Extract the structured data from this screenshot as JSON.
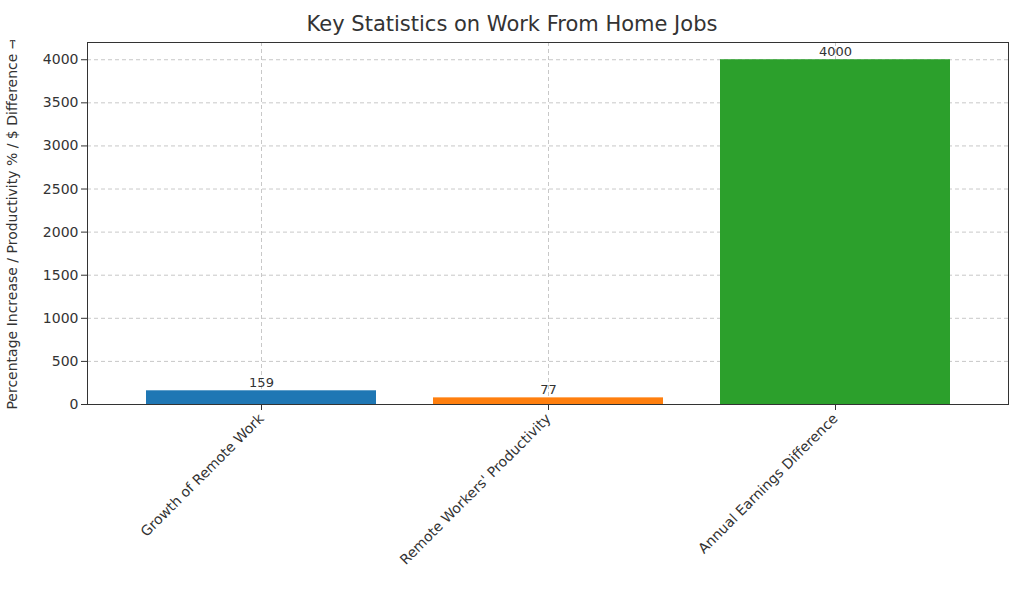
{
  "chart_data": {
    "type": "bar",
    "title": "Key Statistics on Work From Home Jobs",
    "y_label": "Percentage Increase / Productivity % / $ Difference",
    "categories": [
      "Growth of Remote Work",
      "Remote Workers' Productivity",
      "Annual Earnings Difference"
    ],
    "values": [
      159,
      77,
      4000
    ],
    "colors": [
      "#1f77b4",
      "#ff7f0e",
      "#2ca02c"
    ],
    "ylim": [
      0,
      4200
    ],
    "yticks": [
      0,
      500,
      1000,
      1500,
      2000,
      2500,
      3000,
      3500,
      4000
    ],
    "grid": true,
    "data_labels": true
  }
}
